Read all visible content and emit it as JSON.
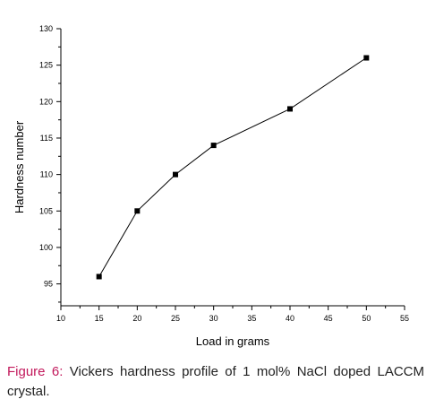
{
  "chart_data": {
    "type": "line",
    "xlabel": "Load in grams",
    "ylabel": "Hardness number",
    "xlim": [
      10,
      55
    ],
    "ylim": [
      92,
      130
    ],
    "xticks": [
      "10",
      "15",
      "20",
      "25",
      "30",
      "35",
      "40",
      "45",
      "50",
      "55"
    ],
    "yticks": [
      "95",
      "100",
      "105",
      "110",
      "115",
      "120",
      "125",
      "130"
    ],
    "grid": false,
    "marker": "square",
    "line_color": "#000000",
    "series": [
      {
        "x": [
          15,
          20,
          25,
          30,
          40,
          50
        ],
        "y": [
          96,
          105,
          110,
          114,
          119,
          126
        ]
      }
    ]
  },
  "caption": {
    "label": "Figure 6:",
    "text": "Vickers hardness profile of 1 mol% NaCl doped LACCM crystal."
  }
}
